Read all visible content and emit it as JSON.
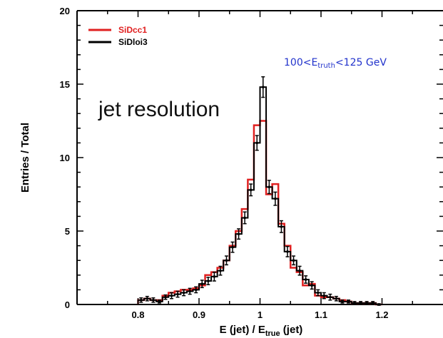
{
  "chart_data": {
    "type": "step-histogram",
    "xlabel_main": "E (jet) / E",
    "xlabel_sub": "true",
    "xlabel_tail": " (jet)",
    "ylabel": "Entries / Total",
    "xlim": [
      0.7,
      1.3
    ],
    "ylim": [
      0,
      20
    ],
    "xticks": [
      0.8,
      0.9,
      1,
      1.1,
      1.2
    ],
    "xtick_labels": [
      "0.8",
      "0.9",
      "1",
      "1.1",
      "1.2"
    ],
    "yticks": [
      0,
      5,
      10,
      15,
      20
    ],
    "ytick_labels": [
      "0",
      "5",
      "10",
      "15",
      "20"
    ],
    "annotation_main": "jet resolution",
    "annotation_range": {
      "pre": "100<E",
      "sub": "truth",
      "post": "<125 GeV"
    },
    "bin_edges": [
      0.8,
      0.81,
      0.82,
      0.83,
      0.84,
      0.85,
      0.86,
      0.87,
      0.88,
      0.89,
      0.9,
      0.91,
      0.92,
      0.93,
      0.94,
      0.95,
      0.96,
      0.97,
      0.98,
      0.99,
      1.0,
      1.01,
      1.02,
      1.03,
      1.04,
      1.05,
      1.06,
      1.07,
      1.08,
      1.09,
      1.1,
      1.11,
      1.12,
      1.13,
      1.14,
      1.15,
      1.16,
      1.17,
      1.18,
      1.19,
      1.2
    ],
    "series": [
      {
        "name": "SiDcc1",
        "color": "#e02020",
        "values": [
          0.3,
          0.4,
          0.3,
          0.3,
          0.6,
          0.8,
          0.9,
          1.0,
          1.0,
          1.1,
          1.3,
          2.0,
          2.2,
          2.5,
          3.0,
          4.0,
          5.0,
          6.5,
          8.5,
          12.2,
          12.5,
          7.5,
          8.2,
          5.5,
          4.0,
          2.5,
          2.2,
          1.3,
          1.4,
          0.6,
          0.5,
          0.5,
          0.4,
          0.3,
          0.2,
          0.1,
          0.1,
          0.1,
          0.1,
          0.0
        ]
      },
      {
        "name": "SiDloi3",
        "color": "#000000",
        "values": [
          0.3,
          0.4,
          0.3,
          0.2,
          0.5,
          0.6,
          0.7,
          0.8,
          0.9,
          1.0,
          1.4,
          1.6,
          1.9,
          2.3,
          3.0,
          3.9,
          4.8,
          5.9,
          7.8,
          11.0,
          14.8,
          8.0,
          7.2,
          5.3,
          3.6,
          3.0,
          2.3,
          1.7,
          1.3,
          0.8,
          0.6,
          0.5,
          0.4,
          0.2,
          0.2,
          0.1,
          0.1,
          0.1,
          0.1,
          0.0
        ],
        "errors": [
          0.15,
          0.15,
          0.15,
          0.1,
          0.15,
          0.2,
          0.2,
          0.2,
          0.2,
          0.2,
          0.25,
          0.25,
          0.3,
          0.3,
          0.3,
          0.35,
          0.35,
          0.4,
          0.4,
          0.5,
          0.7,
          0.45,
          0.45,
          0.4,
          0.35,
          0.3,
          0.3,
          0.25,
          0.25,
          0.2,
          0.2,
          0.2,
          0.15,
          0.1,
          0.1,
          0.1,
          0.1,
          0.1,
          0.1,
          0.05
        ]
      }
    ],
    "legend": [
      {
        "label": "SiDcc1",
        "color": "#e02020"
      },
      {
        "label": "SiDloi3",
        "color": "#000000"
      }
    ],
    "legend_position": "top-left"
  }
}
